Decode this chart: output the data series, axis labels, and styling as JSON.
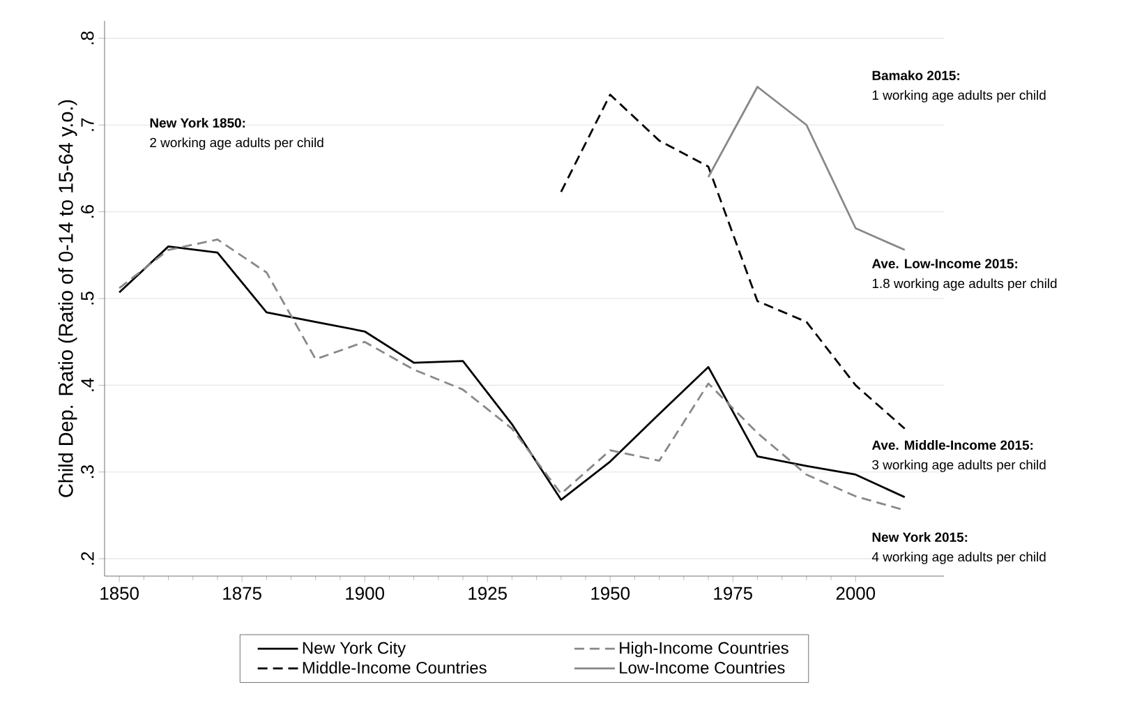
{
  "chart_data": {
    "type": "line",
    "ylabel": "Child Dep. Ratio (Ratio of 0-14 to 15-64 y.o.)",
    "x": [
      1850,
      1860,
      1870,
      1880,
      1890,
      1900,
      1910,
      1920,
      1930,
      1940,
      1950,
      1960,
      1970,
      1980,
      1990,
      2000,
      2010
    ],
    "series": [
      {
        "name": "New York City",
        "color": "#000000",
        "line_style": "solid",
        "values": [
          0.507,
          0.56,
          0.553,
          0.484,
          0.473,
          0.462,
          0.426,
          0.428,
          0.355,
          0.268,
          0.312,
          0.367,
          0.421,
          0.318,
          0.307,
          0.297,
          0.271
        ]
      },
      {
        "name": "High-Income Countries",
        "color": "#888888",
        "line_style": "dashed",
        "values": [
          0.512,
          0.556,
          0.568,
          0.53,
          0.43,
          0.45,
          0.418,
          0.395,
          0.35,
          0.275,
          0.325,
          0.313,
          0.402,
          0.345,
          0.297,
          0.272,
          0.256
        ]
      },
      {
        "name": "Middle-Income Countries",
        "color": "#000000",
        "line_style": "dashed",
        "values": [
          null,
          null,
          null,
          null,
          null,
          null,
          null,
          null,
          null,
          0.623,
          0.735,
          0.682,
          0.652,
          0.497,
          0.473,
          0.4,
          0.35
        ]
      },
      {
        "name": "Low-Income Countries",
        "color": "#888888",
        "line_style": "solid",
        "values": [
          null,
          null,
          null,
          null,
          null,
          null,
          null,
          null,
          null,
          null,
          null,
          null,
          0.64,
          0.744,
          0.7,
          0.581,
          0.556
        ]
      }
    ],
    "xlim": [
      1847,
      2018
    ],
    "ylim": [
      0.18,
      0.82
    ],
    "xticks": [
      1850,
      1875,
      1900,
      1925,
      1950,
      1975,
      2000
    ],
    "yticks": [
      {
        "value": 0.2,
        "label": ".2"
      },
      {
        "value": 0.3,
        "label": ".3"
      },
      {
        "value": 0.4,
        "label": ".4"
      },
      {
        "value": 0.5,
        "label": ".5"
      },
      {
        "value": 0.6,
        "label": ".6"
      },
      {
        "value": 0.7,
        "label": ".7"
      },
      {
        "value": 0.8,
        "label": ".8"
      }
    ],
    "grid": "y",
    "legend": "bottom",
    "annotations": [
      "New York 1850:",
      "2 working age adults per child",
      "Bamako 2015:",
      "1 working age adults per child",
      "Ave. Low-Income 2015:",
      "1.8 working age adults per child",
      "Ave. Middle-Income 2015:",
      "3 working age adults per child",
      "New York 2015:",
      "4 working age adults per child"
    ]
  }
}
